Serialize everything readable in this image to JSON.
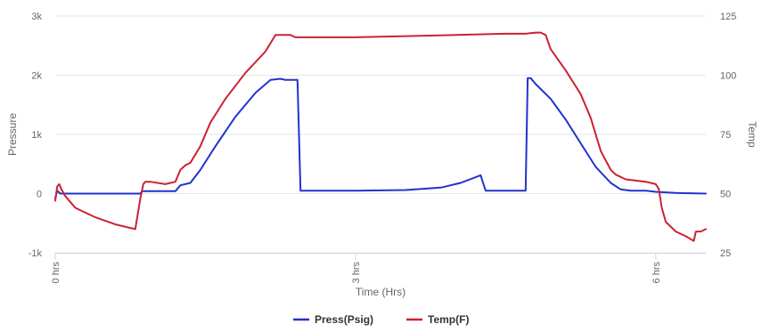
{
  "chart_data": {
    "type": "line",
    "title": "",
    "xlabel": "Time (Hrs)",
    "x_ticks": [
      {
        "value": 0,
        "label": "0 hrs"
      },
      {
        "value": 3,
        "label": "3 hrs"
      },
      {
        "value": 6,
        "label": "6 hrs"
      }
    ],
    "xlim": [
      0,
      6.5
    ],
    "y_axes": [
      {
        "id": "left",
        "label": "Pressure",
        "lim": [
          -1000,
          3000
        ],
        "ticks": [
          {
            "value": -1000,
            "label": "-1k"
          },
          {
            "value": 0,
            "label": "0"
          },
          {
            "value": 1000,
            "label": "1k"
          },
          {
            "value": 2000,
            "label": "2k"
          },
          {
            "value": 3000,
            "label": "3k"
          }
        ]
      },
      {
        "id": "right",
        "label": "Temp",
        "lim": [
          25,
          125
        ],
        "ticks": [
          {
            "value": 25,
            "label": "25"
          },
          {
            "value": 50,
            "label": "50"
          },
          {
            "value": 75,
            "label": "75"
          },
          {
            "value": 100,
            "label": "100"
          },
          {
            "value": 125,
            "label": "125"
          }
        ]
      }
    ],
    "grid": "horizontal",
    "legend_position": "bottom-center",
    "series": [
      {
        "name": "Press(Psig)",
        "axis": "left",
        "color": "#2233cc",
        "x": [
          0,
          0.02,
          0.05,
          0.1,
          0.5,
          0.85,
          0.87,
          1.2,
          1.25,
          1.35,
          1.45,
          1.6,
          1.8,
          2.0,
          2.15,
          2.25,
          2.3,
          2.4,
          2.42,
          2.45,
          3.0,
          3.5,
          3.85,
          4.05,
          4.25,
          4.3,
          4.31,
          4.7,
          4.72,
          4.75,
          4.8,
          4.95,
          5.1,
          5.25,
          5.4,
          5.55,
          5.65,
          5.75,
          5.9,
          6.0,
          6.2,
          6.5
        ],
        "y": [
          -80,
          50,
          0,
          0,
          0,
          0,
          40,
          40,
          140,
          180,
          400,
          800,
          1300,
          1700,
          1920,
          1940,
          1920,
          1920,
          1920,
          50,
          50,
          60,
          100,
          180,
          310,
          50,
          50,
          50,
          1950,
          1950,
          1850,
          1600,
          1250,
          850,
          450,
          180,
          70,
          50,
          50,
          30,
          10,
          0
        ]
      },
      {
        "name": "Temp(F)",
        "axis": "right",
        "color": "#cc2233",
        "x": [
          0,
          0.02,
          0.04,
          0.06,
          0.1,
          0.2,
          0.4,
          0.6,
          0.8,
          0.85,
          0.88,
          0.9,
          0.95,
          1.1,
          1.2,
          1.25,
          1.3,
          1.35,
          1.45,
          1.55,
          1.7,
          1.9,
          2.1,
          2.2,
          2.25,
          2.35,
          2.4,
          2.6,
          2.8,
          3.0,
          3.5,
          4.0,
          4.5,
          4.7,
          4.8,
          4.85,
          4.9,
          4.95,
          5.1,
          5.25,
          5.35,
          5.45,
          5.55,
          5.6,
          5.7,
          5.9,
          6.0,
          6.03,
          6.06,
          6.1,
          6.2,
          6.3,
          6.38,
          6.4,
          6.45,
          6.5
        ],
        "y": [
          47,
          53,
          54,
          52,
          49,
          44,
          40,
          37,
          35,
          48,
          54,
          55,
          55,
          54,
          55,
          60,
          62,
          63,
          70,
          80,
          90,
          101,
          110,
          117,
          117,
          117,
          116,
          116,
          116,
          116,
          116.5,
          117,
          117.5,
          117.5,
          118,
          118,
          117,
          111,
          102,
          92,
          82,
          68,
          60,
          58,
          56,
          55,
          54,
          52,
          44,
          38,
          34,
          32,
          30,
          34,
          34,
          35
        ]
      }
    ]
  }
}
